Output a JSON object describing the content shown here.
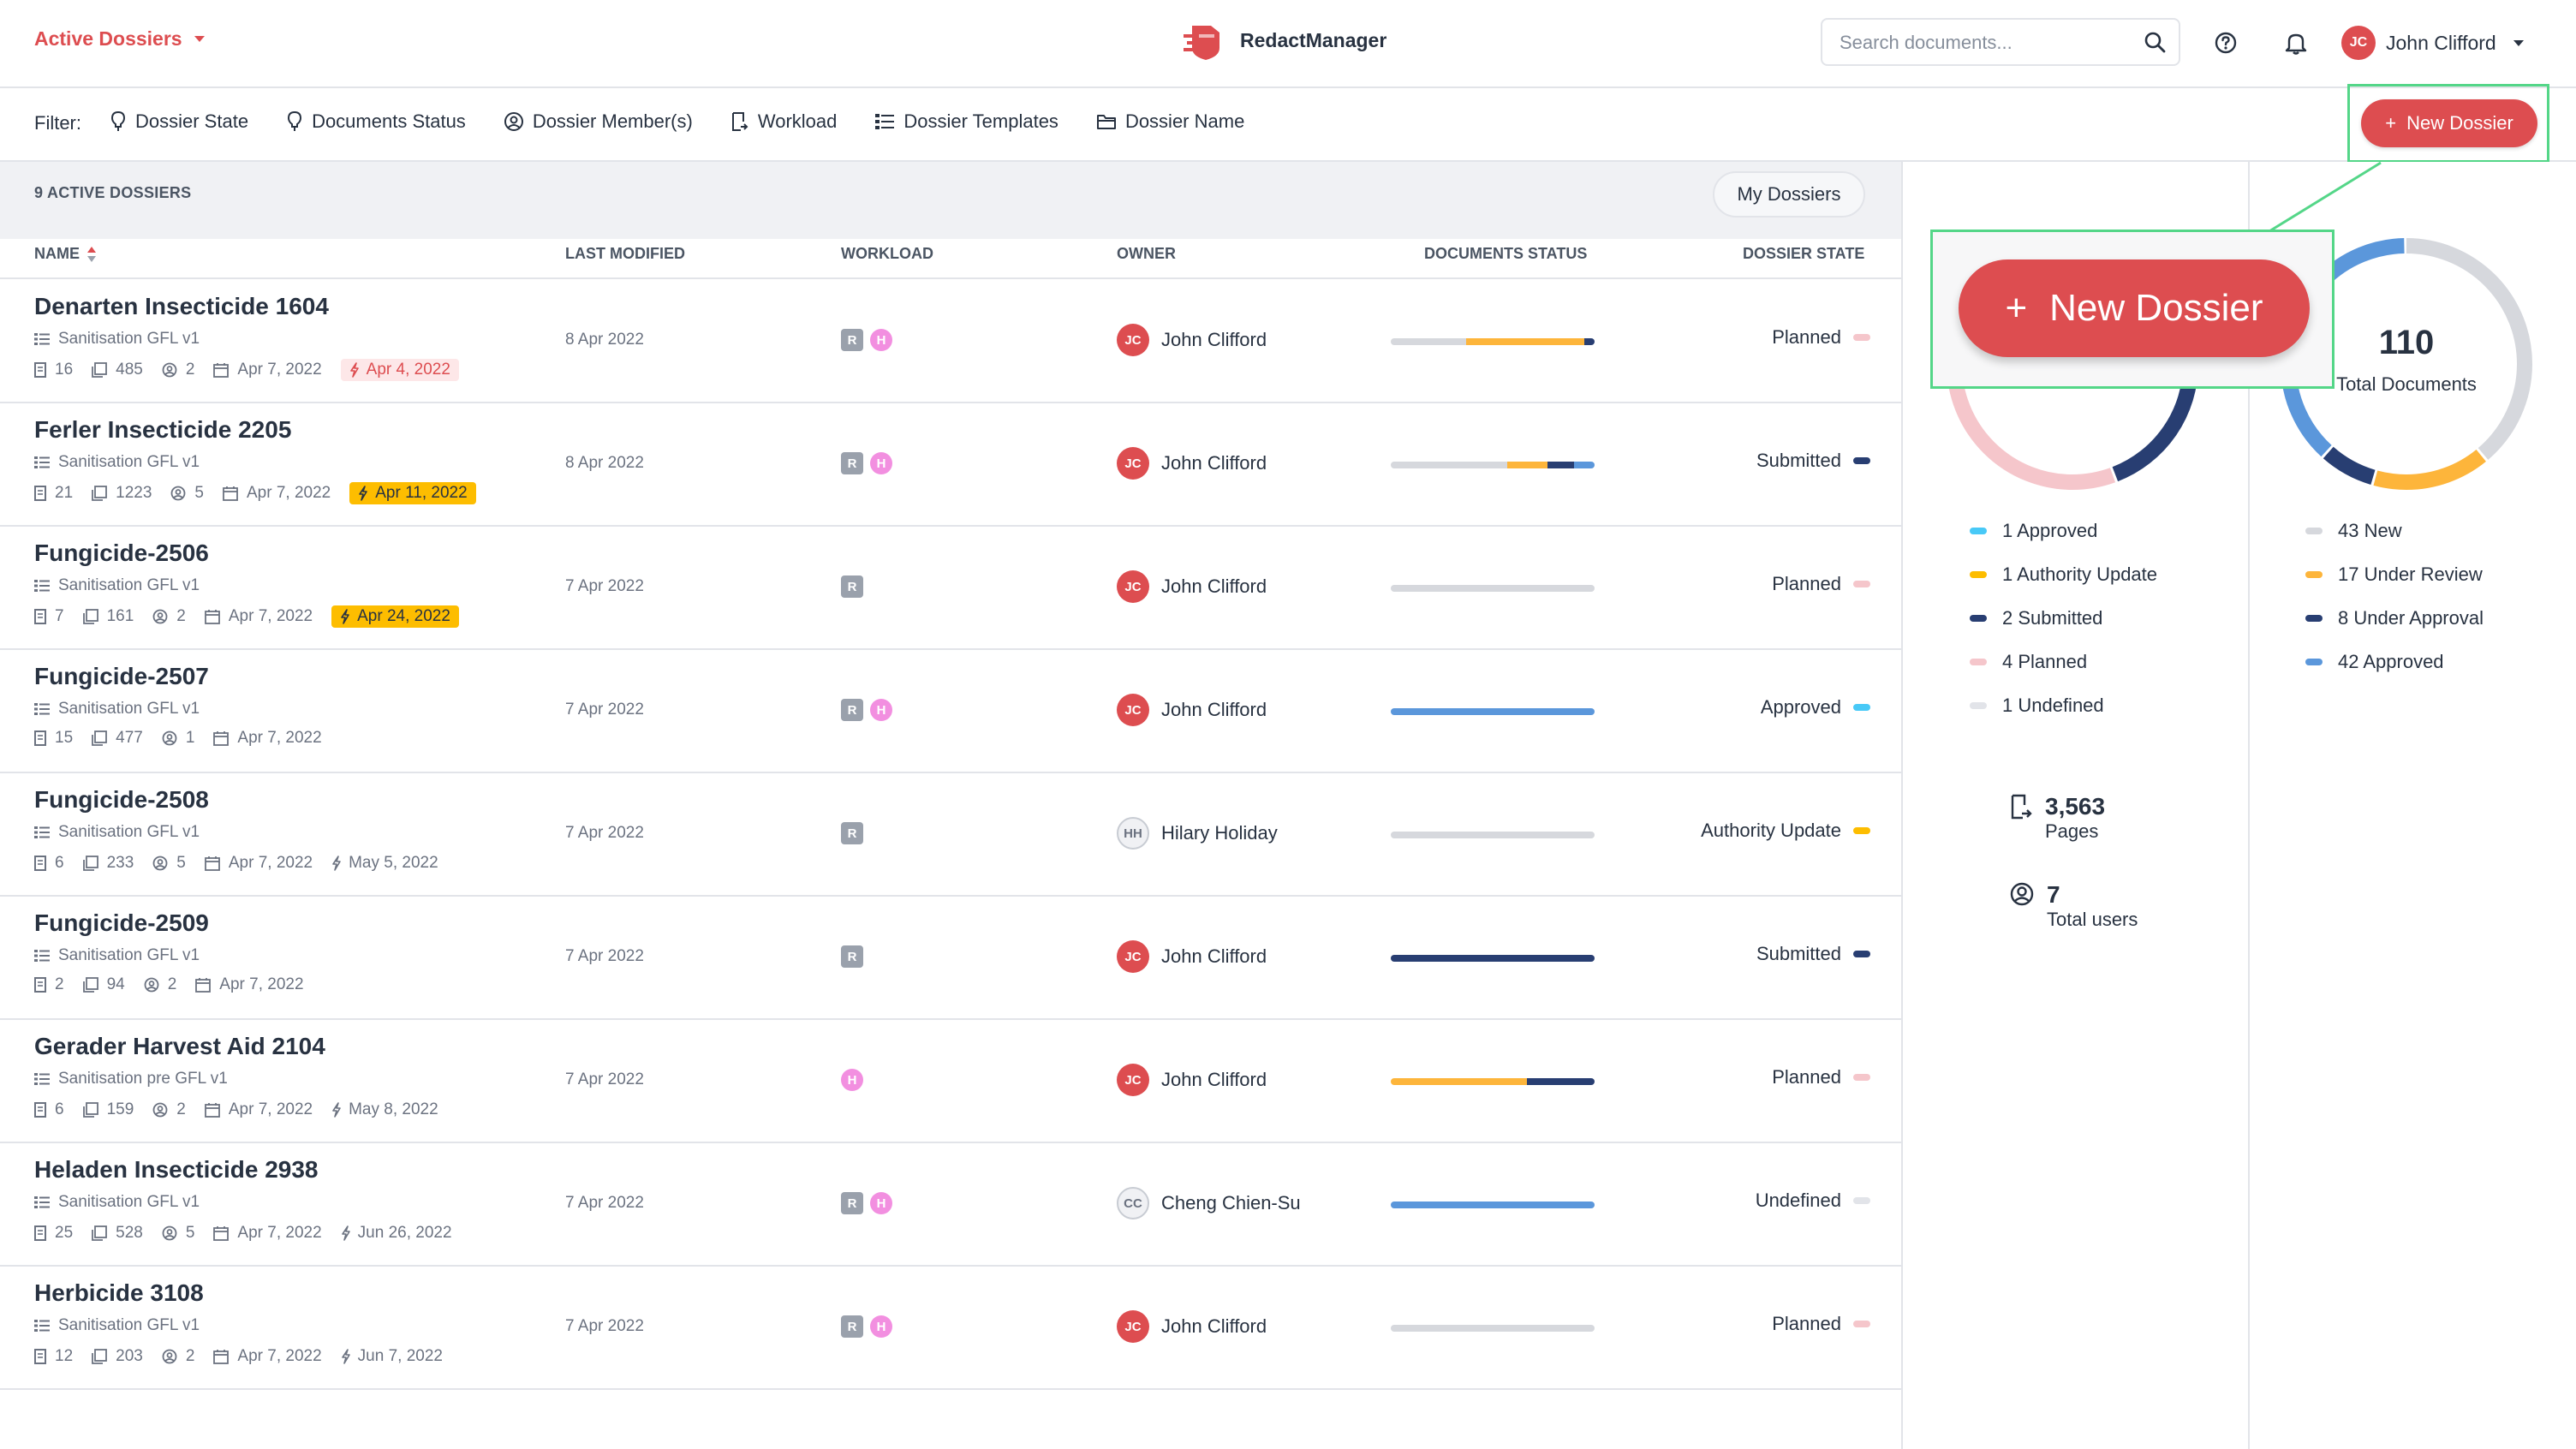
{
  "header": {
    "app_switch_label": "Active Dossiers",
    "logo_text": "RedactManager",
    "search_placeholder": "Search documents...",
    "user": {
      "initials": "JC",
      "name": "John Clifford"
    }
  },
  "filter_bar": {
    "label": "Filter:",
    "filters": [
      "Dossier State",
      "Documents Status",
      "Dossier Member(s)",
      "Workload",
      "Dossier Templates",
      "Dossier Name"
    ],
    "new_button": "New Dossier"
  },
  "list": {
    "count_label": "9 ACTIVE DOSSIERS",
    "my_dossiers_button": "My Dossiers",
    "columns": [
      "NAME",
      "LAST MODIFIED",
      "WORKLOAD",
      "OWNER",
      "DOCUMENTS STATUS",
      "DOSSIER STATE"
    ],
    "rows": [
      {
        "name": "Denarten Insecticide 1604",
        "template": "Sanitisation GFL v1",
        "docs": "16",
        "pages": "485",
        "members": "2",
        "created": "Apr 7, 2022",
        "due": "Apr 4, 2022",
        "due_style": "red",
        "modified": "8 Apr 2022",
        "workload": [
          "R",
          "H"
        ],
        "owner_initials": "JC",
        "owner": "John Clifford",
        "owner_style": "red",
        "status_segments": [
          {
            "color": "#d6d8dd",
            "value": 37
          },
          {
            "color": "#fdb53b",
            "value": 58
          },
          {
            "color": "#283e72",
            "value": 5
          }
        ],
        "state": "Planned",
        "state_color": "#f5c6cb"
      },
      {
        "name": "Ferler Insecticide 2205",
        "template": "Sanitisation GFL v1",
        "docs": "21",
        "pages": "1223",
        "members": "5",
        "created": "Apr 7, 2022",
        "due": "Apr 11, 2022",
        "due_style": "yellow",
        "modified": "8 Apr 2022",
        "workload": [
          "R",
          "H"
        ],
        "owner_initials": "JC",
        "owner": "John Clifford",
        "owner_style": "red",
        "status_segments": [
          {
            "color": "#d6d8dd",
            "value": 57
          },
          {
            "color": "#fdb53b",
            "value": 20
          },
          {
            "color": "#283e72",
            "value": 13
          },
          {
            "color": "#5b97db",
            "value": 10
          }
        ],
        "state": "Submitted",
        "state_color": "#283e72"
      },
      {
        "name": "Fungicide-2506",
        "template": "Sanitisation GFL v1",
        "docs": "7",
        "pages": "161",
        "members": "2",
        "created": "Apr 7, 2022",
        "due": "Apr 24, 2022",
        "due_style": "yellow",
        "modified": "7 Apr 2022",
        "workload": [
          "R"
        ],
        "owner_initials": "JC",
        "owner": "John Clifford",
        "owner_style": "red",
        "status_segments": [
          {
            "color": "#d6d8dd",
            "value": 100
          }
        ],
        "state": "Planned",
        "state_color": "#f5c6cb"
      },
      {
        "name": "Fungicide-2507",
        "template": "Sanitisation GFL v1",
        "docs": "15",
        "pages": "477",
        "members": "1",
        "created": "Apr 7, 2022",
        "due": "",
        "due_style": "none",
        "modified": "7 Apr 2022",
        "workload": [
          "R",
          "H"
        ],
        "owner_initials": "JC",
        "owner": "John Clifford",
        "owner_style": "red",
        "status_segments": [
          {
            "color": "#5b97db",
            "value": 100
          }
        ],
        "state": "Approved",
        "state_color": "#48c9f7"
      },
      {
        "name": "Fungicide-2508",
        "template": "Sanitisation GFL v1",
        "docs": "6",
        "pages": "233",
        "members": "5",
        "created": "Apr 7, 2022",
        "due": "May 5, 2022",
        "due_style": "plain",
        "modified": "7 Apr 2022",
        "workload": [
          "R"
        ],
        "owner_initials": "HH",
        "owner": "Hilary Holiday",
        "owner_style": "grey",
        "status_segments": [
          {
            "color": "#d6d8dd",
            "value": 100
          }
        ],
        "state": "Authority Update",
        "state_color": "#fdbd00"
      },
      {
        "name": "Fungicide-2509",
        "template": "Sanitisation GFL v1",
        "docs": "2",
        "pages": "94",
        "members": "2",
        "created": "Apr 7, 2022",
        "due": "",
        "due_style": "none",
        "modified": "7 Apr 2022",
        "workload": [
          "R"
        ],
        "owner_initials": "JC",
        "owner": "John Clifford",
        "owner_style": "red",
        "status_segments": [
          {
            "color": "#283e72",
            "value": 100
          }
        ],
        "state": "Submitted",
        "state_color": "#283e72"
      },
      {
        "name": "Gerader Harvest Aid 2104",
        "template": "Sanitisation pre GFL v1",
        "docs": "6",
        "pages": "159",
        "members": "2",
        "created": "Apr 7, 2022",
        "due": "May 8, 2022",
        "due_style": "plain",
        "modified": "7 Apr 2022",
        "workload": [
          "H"
        ],
        "owner_initials": "JC",
        "owner": "John Clifford",
        "owner_style": "red",
        "status_segments": [
          {
            "color": "#fdb53b",
            "value": 67
          },
          {
            "color": "#283e72",
            "value": 33
          }
        ],
        "state": "Planned",
        "state_color": "#f5c6cb"
      },
      {
        "name": "Heladen Insecticide 2938",
        "template": "Sanitisation GFL v1",
        "docs": "25",
        "pages": "528",
        "members": "5",
        "created": "Apr 7, 2022",
        "due": "Jun 26, 2022",
        "due_style": "plain",
        "modified": "7 Apr 2022",
        "workload": [
          "R",
          "H"
        ],
        "owner_initials": "CC",
        "owner": "Cheng Chien-Su",
        "owner_style": "grey",
        "status_segments": [
          {
            "color": "#5b97db",
            "value": 100
          }
        ],
        "state": "Undefined",
        "state_color": "#e2e4e9"
      },
      {
        "name": "Herbicide 3108",
        "template": "Sanitisation GFL v1",
        "docs": "12",
        "pages": "203",
        "members": "2",
        "created": "Apr 7, 2022",
        "due": "Jun 7, 2022",
        "due_style": "plain",
        "modified": "7 Apr 2022",
        "workload": [
          "R",
          "H"
        ],
        "owner_initials": "JC",
        "owner": "John Clifford",
        "owner_style": "red",
        "status_segments": [
          {
            "color": "#d6d8dd",
            "value": 100
          }
        ],
        "state": "Planned",
        "state_color": "#f5c6cb"
      }
    ]
  },
  "sidebar": {
    "dossier_chart": {
      "segments": [
        {
          "label": "Approved",
          "value": 1,
          "color": "#48c9f7"
        },
        {
          "label": "Authority Update",
          "value": 1,
          "color": "#fdbd00"
        },
        {
          "label": "Submitted",
          "value": 2,
          "color": "#283e72"
        },
        {
          "label": "Planned",
          "value": 4,
          "color": "#f5c6cb"
        },
        {
          "label": "Undefined",
          "value": 1,
          "color": "#e2e4e9"
        }
      ],
      "legend": [
        "1 Approved",
        "1 Authority Update",
        "2 Submitted",
        "4 Planned",
        "1 Undefined"
      ]
    },
    "documents_chart": {
      "total": "110",
      "total_label": "Total Documents",
      "segments": [
        {
          "label": "New",
          "value": 43,
          "color": "#d6d8dd"
        },
        {
          "label": "Under Review",
          "value": 17,
          "color": "#fdb53b"
        },
        {
          "label": "Under Approval",
          "value": 8,
          "color": "#283e72"
        },
        {
          "label": "Approved",
          "value": 42,
          "color": "#5b97db"
        }
      ],
      "legend": [
        "43 New",
        "17 Under Review",
        "8 Under Approval",
        "42 Approved"
      ]
    },
    "pages": {
      "value": "3,563",
      "label": "Pages"
    },
    "users": {
      "value": "7",
      "label": "Total users"
    }
  },
  "highlight": {
    "zoom_label": "New Dossier",
    "color": "#54d688"
  }
}
